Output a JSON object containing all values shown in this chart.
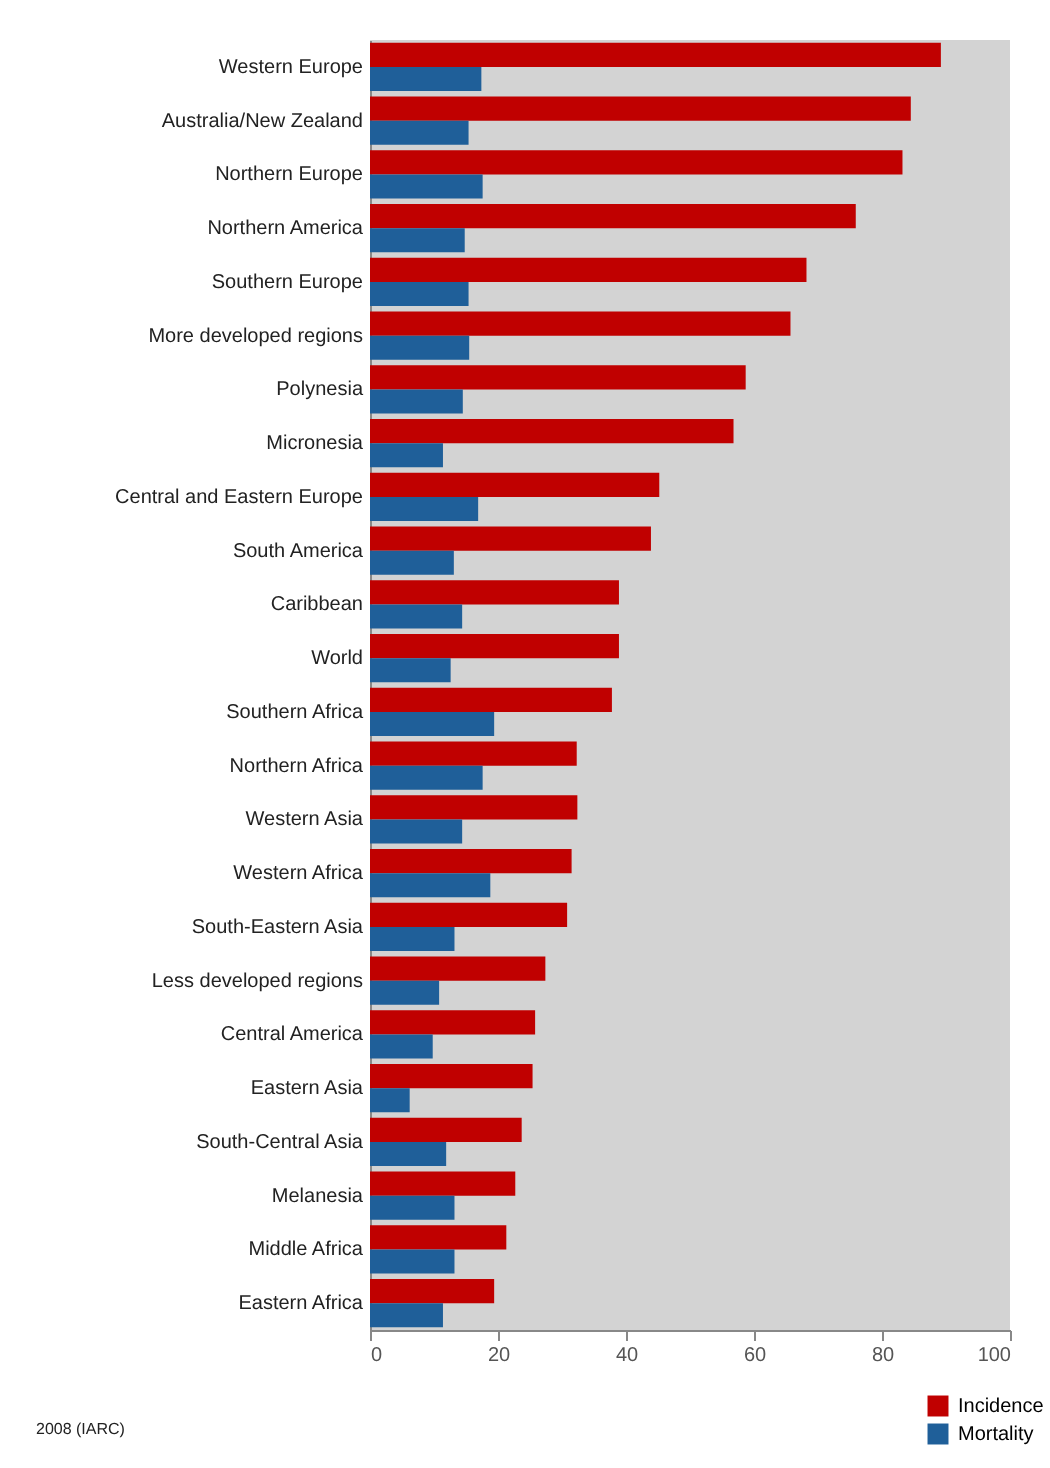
{
  "chart_data": {
    "type": "bar",
    "orientation": "horizontal",
    "categories": [
      "Western Europe",
      "Australia/New Zealand",
      "Northern Europe",
      "Northern America",
      "Southern Europe",
      "More developed regions",
      "Polynesia",
      "Micronesia",
      "Central and Eastern Europe",
      "South America",
      "Caribbean",
      "World",
      "Southern Africa",
      "Northern Africa",
      "Western Asia",
      "Western Africa",
      "South-Eastern Asia",
      "Less developed regions",
      "Central America",
      "Eastern Asia",
      "South-Central Asia",
      "Melanesia",
      "Middle Africa",
      "Eastern Africa"
    ],
    "series": [
      {
        "name": "Incidence",
        "color": "#c00000",
        "values": [
          89.2,
          84.5,
          83.2,
          75.9,
          68.2,
          65.7,
          58.7,
          56.8,
          45.2,
          43.9,
          38.9,
          38.9,
          37.8,
          32.3,
          32.4,
          31.5,
          30.8,
          27.4,
          25.8,
          25.4,
          23.7,
          22.7,
          21.3,
          19.4
        ]
      },
      {
        "name": "Mortality",
        "color": "#1f5f99",
        "values": [
          17.4,
          15.4,
          17.6,
          14.8,
          15.4,
          15.5,
          14.5,
          11.4,
          16.9,
          13.1,
          14.4,
          12.6,
          19.4,
          17.6,
          14.4,
          18.8,
          13.2,
          10.8,
          9.8,
          6.2,
          11.9,
          13.2,
          13.2,
          11.4
        ]
      }
    ],
    "xlim": [
      0,
      100
    ],
    "xticks": [
      0,
      20,
      40,
      60,
      80,
      100
    ],
    "grid": false,
    "legend": "bottom right",
    "annotations": [
      "2008 (IARC)"
    ]
  }
}
